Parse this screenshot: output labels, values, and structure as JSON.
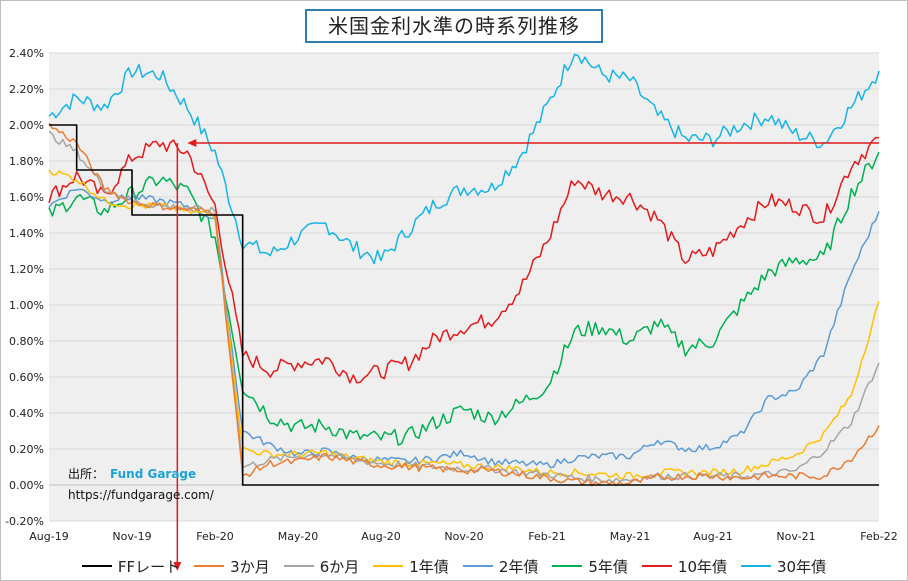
{
  "title": "米国金利水準の時系列推移",
  "source_label": "出所：",
  "source_name": "Fund Garage",
  "source_url": "https://fundgarage.com/",
  "colors": {
    "ff": "#000000",
    "m3": "#ed7d31",
    "m6": "#a5a5a5",
    "y1": "#ffc000",
    "y2": "#5b9bd5",
    "y5": "#00b050",
    "y10": "#e41a1c",
    "y30": "#17b4e6",
    "annotation": "#e41a1c",
    "plot_bg": "#efefef"
  },
  "chart_data": {
    "type": "line",
    "title": "米国金利水準の時系列推移",
    "xlabel": "",
    "ylabel": "",
    "ylim": [
      -0.2,
      2.4
    ],
    "yticks": [
      "-0.20%",
      "0.00%",
      "0.20%",
      "0.40%",
      "0.60%",
      "0.80%",
      "1.00%",
      "1.20%",
      "1.40%",
      "1.60%",
      "1.80%",
      "2.00%",
      "2.20%",
      "2.40%"
    ],
    "xticks": [
      "Aug-19",
      "Nov-19",
      "Feb-20",
      "May-20",
      "Aug-20",
      "Nov-20",
      "Feb-21",
      "May-21",
      "Aug-21",
      "Nov-21",
      "Feb-22"
    ],
    "x": [
      "Aug-19",
      "Sep-19",
      "Oct-19",
      "Nov-19",
      "Dec-19",
      "Jan-20",
      "Feb-20",
      "Mar-20",
      "Apr-20",
      "May-20",
      "Jun-20",
      "Jul-20",
      "Aug-20",
      "Sep-20",
      "Oct-20",
      "Nov-20",
      "Dec-20",
      "Jan-21",
      "Feb-21",
      "Mar-21",
      "Apr-21",
      "May-21",
      "Jun-21",
      "Jul-21",
      "Aug-21",
      "Sep-21",
      "Oct-21",
      "Nov-21",
      "Dec-21",
      "Jan-22",
      "Feb-22"
    ],
    "grid": true,
    "legend_position": "bottom",
    "series": [
      {
        "name": "FFレート",
        "key": "ff",
        "step": true,
        "values": [
          2.0,
          1.75,
          1.75,
          1.5,
          1.5,
          1.5,
          1.5,
          0.0,
          0.0,
          0.0,
          0.0,
          0.0,
          0.0,
          0.0,
          0.0,
          0.0,
          0.0,
          0.0,
          0.0,
          0.0,
          0.0,
          0.0,
          0.0,
          0.0,
          0.0,
          0.0,
          0.0,
          0.0,
          0.0,
          0.0,
          0.0
        ]
      },
      {
        "name": "3か月",
        "key": "m3",
        "values": [
          2.0,
          1.9,
          1.65,
          1.57,
          1.55,
          1.53,
          1.52,
          0.05,
          0.12,
          0.13,
          0.16,
          0.13,
          0.11,
          0.1,
          0.09,
          0.08,
          0.08,
          0.06,
          0.04,
          0.02,
          0.01,
          0.01,
          0.04,
          0.05,
          0.05,
          0.04,
          0.05,
          0.05,
          0.05,
          0.15,
          0.33
        ]
      },
      {
        "name": "6か月",
        "key": "m6",
        "values": [
          1.95,
          1.85,
          1.65,
          1.58,
          1.55,
          1.54,
          1.52,
          0.1,
          0.14,
          0.16,
          0.17,
          0.14,
          0.12,
          0.11,
          0.1,
          0.09,
          0.09,
          0.07,
          0.06,
          0.04,
          0.03,
          0.03,
          0.05,
          0.05,
          0.05,
          0.05,
          0.06,
          0.08,
          0.19,
          0.35,
          0.68
        ]
      },
      {
        "name": "1年債",
        "key": "y1",
        "values": [
          1.75,
          1.7,
          1.58,
          1.55,
          1.55,
          1.52,
          1.5,
          0.2,
          0.17,
          0.17,
          0.18,
          0.15,
          0.13,
          0.12,
          0.12,
          0.11,
          0.1,
          0.09,
          0.07,
          0.07,
          0.06,
          0.05,
          0.07,
          0.07,
          0.07,
          0.08,
          0.12,
          0.17,
          0.28,
          0.5,
          1.02
        ]
      },
      {
        "name": "2年債",
        "key": "y2",
        "values": [
          1.55,
          1.65,
          1.58,
          1.6,
          1.58,
          1.55,
          1.48,
          0.3,
          0.22,
          0.17,
          0.19,
          0.15,
          0.14,
          0.13,
          0.15,
          0.18,
          0.13,
          0.12,
          0.11,
          0.15,
          0.16,
          0.16,
          0.25,
          0.2,
          0.21,
          0.28,
          0.48,
          0.52,
          0.73,
          1.18,
          1.52
        ]
      },
      {
        "name": "5年債",
        "key": "y5",
        "values": [
          1.5,
          1.6,
          1.52,
          1.62,
          1.7,
          1.63,
          1.38,
          0.55,
          0.38,
          0.32,
          0.33,
          0.27,
          0.26,
          0.27,
          0.35,
          0.42,
          0.37,
          0.45,
          0.55,
          0.85,
          0.88,
          0.8,
          0.9,
          0.76,
          0.8,
          1.0,
          1.18,
          1.25,
          1.26,
          1.62,
          1.85
        ]
      },
      {
        "name": "10年債",
        "key": "y10",
        "values": [
          1.6,
          1.72,
          1.6,
          1.82,
          1.9,
          1.85,
          1.55,
          0.72,
          0.64,
          0.68,
          0.7,
          0.6,
          0.63,
          0.68,
          0.82,
          0.88,
          0.92,
          1.08,
          1.35,
          1.7,
          1.62,
          1.6,
          1.48,
          1.25,
          1.3,
          1.45,
          1.58,
          1.55,
          1.48,
          1.78,
          1.93
        ]
      },
      {
        "name": "30年債",
        "key": "y30",
        "values": [
          2.05,
          2.15,
          2.1,
          2.3,
          2.28,
          2.1,
          1.85,
          1.35,
          1.28,
          1.38,
          1.45,
          1.32,
          1.25,
          1.42,
          1.57,
          1.65,
          1.65,
          1.82,
          2.1,
          2.42,
          2.28,
          2.25,
          2.05,
          1.92,
          1.92,
          2.0,
          2.05,
          1.95,
          1.9,
          2.1,
          2.3
        ]
      }
    ],
    "annotation": {
      "level": 1.9,
      "from": "Jan-20",
      "to": "Feb-22",
      "down_to": 0.0
    }
  },
  "legend": [
    {
      "key": "ff",
      "label": "FFレート"
    },
    {
      "key": "m3",
      "label": "3か月"
    },
    {
      "key": "m6",
      "label": "6か月"
    },
    {
      "key": "y1",
      "label": "1年債"
    },
    {
      "key": "y2",
      "label": "2年債"
    },
    {
      "key": "y5",
      "label": "5年債"
    },
    {
      "key": "y10",
      "label": "10年債"
    },
    {
      "key": "y30",
      "label": "30年債"
    }
  ]
}
